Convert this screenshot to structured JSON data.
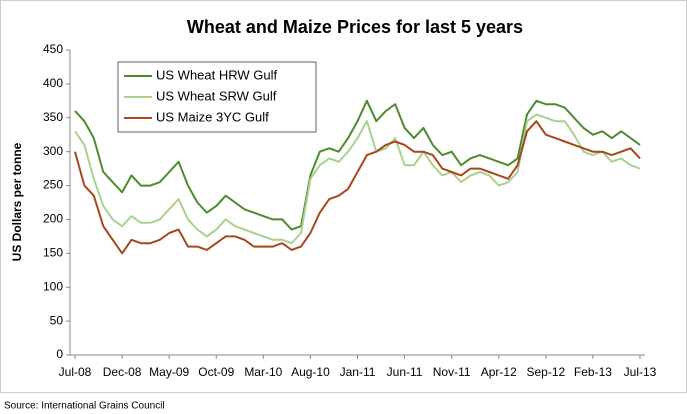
{
  "chart_data": {
    "type": "line",
    "title": "Wheat and Maize Prices for last 5 years",
    "ylabel": "US Dollars per tonne",
    "source": "Source: International Grains Council",
    "categories": [
      "Jul-08",
      null,
      null,
      null,
      null,
      "Dec-08",
      null,
      null,
      null,
      null,
      "May-09",
      null,
      null,
      null,
      null,
      "Oct-09",
      null,
      null,
      null,
      null,
      "Mar-10",
      null,
      null,
      null,
      null,
      "Aug-10",
      null,
      null,
      null,
      null,
      "Jan-11",
      null,
      null,
      null,
      null,
      "Jun-11",
      null,
      null,
      null,
      null,
      "Nov-11",
      null,
      null,
      null,
      null,
      "Apr-12",
      null,
      null,
      null,
      null,
      "Sep-12",
      null,
      null,
      null,
      null,
      "Feb-13",
      null,
      null,
      null,
      null,
      "Jul-13"
    ],
    "series": [
      {
        "name": "US Wheat HRW Gulf",
        "color": "#4e8a2e",
        "values": [
          360,
          345,
          320,
          270,
          255,
          240,
          265,
          250,
          250,
          255,
          270,
          285,
          250,
          225,
          210,
          220,
          235,
          225,
          215,
          210,
          205,
          200,
          200,
          185,
          190,
          265,
          300,
          305,
          300,
          320,
          345,
          375,
          345,
          360,
          370,
          335,
          320,
          335,
          310,
          295,
          300,
          280,
          290,
          295,
          290,
          285,
          280,
          290,
          355,
          375,
          370,
          370,
          365,
          350,
          335,
          325,
          330,
          320,
          330,
          320,
          310
        ]
      },
      {
        "name": "US Wheat SRW Gulf",
        "color": "#a9d18e",
        "values": [
          330,
          310,
          260,
          220,
          200,
          190,
          205,
          195,
          195,
          200,
          215,
          230,
          200,
          185,
          175,
          185,
          200,
          190,
          185,
          180,
          175,
          170,
          170,
          165,
          180,
          260,
          280,
          290,
          285,
          300,
          320,
          345,
          300,
          305,
          320,
          280,
          280,
          300,
          280,
          265,
          270,
          255,
          265,
          270,
          265,
          250,
          255,
          270,
          345,
          355,
          350,
          345,
          345,
          325,
          300,
          295,
          300,
          285,
          290,
          280,
          275
        ]
      },
      {
        "name": "US Maize 3YC Gulf",
        "color": "#a9461d",
        "values": [
          300,
          250,
          235,
          190,
          170,
          150,
          170,
          165,
          165,
          170,
          180,
          185,
          160,
          160,
          155,
          165,
          175,
          175,
          170,
          160,
          160,
          160,
          165,
          155,
          160,
          180,
          210,
          230,
          235,
          245,
          270,
          295,
          300,
          310,
          315,
          310,
          300,
          300,
          295,
          275,
          270,
          265,
          275,
          275,
          270,
          265,
          260,
          280,
          330,
          345,
          325,
          320,
          315,
          310,
          305,
          300,
          300,
          295,
          300,
          305,
          290
        ]
      }
    ],
    "ylim": [
      0,
      450
    ],
    "yticks": [
      0,
      50,
      100,
      150,
      200,
      250,
      300,
      350,
      400,
      450
    ],
    "grid": false,
    "legend": "upper left"
  }
}
